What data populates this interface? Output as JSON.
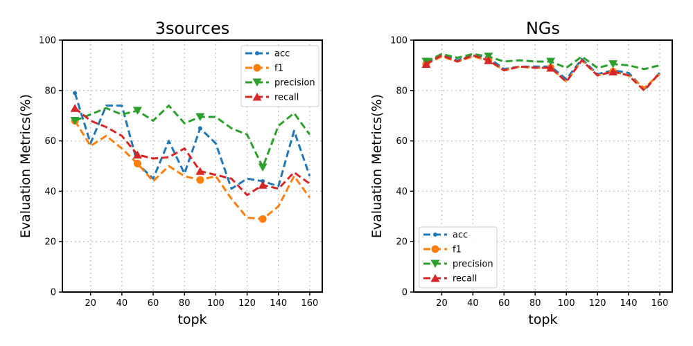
{
  "chart_data": [
    {
      "type": "line",
      "title": "3sources",
      "xlabel": "topk",
      "ylabel": "Evaluation Metrics(%)",
      "xlim": [
        2,
        168
      ],
      "ylim": [
        0,
        100
      ],
      "xticks": [
        20,
        40,
        60,
        80,
        100,
        120,
        140,
        160
      ],
      "yticks": [
        0,
        20,
        40,
        60,
        80,
        100
      ],
      "grid": true,
      "legend_position": "top-right",
      "x": [
        10,
        20,
        30,
        40,
        50,
        60,
        70,
        80,
        90,
        100,
        110,
        120,
        130,
        140,
        150,
        160
      ],
      "series": [
        {
          "name": "acc",
          "color": "#1f77b4",
          "marker": "dot",
          "values": [
            79,
            59,
            74,
            74,
            51,
            45,
            60,
            47,
            65,
            59,
            41,
            45,
            44,
            42,
            64,
            46
          ]
        },
        {
          "name": "f1",
          "color": "#ff7f0e",
          "marker": "circle",
          "values": [
            68,
            58,
            62,
            57,
            51,
            44,
            50,
            46,
            44.5,
            46,
            37,
            29.5,
            29,
            34,
            46,
            37.5
          ]
        },
        {
          "name": "precision",
          "color": "#2ca02c",
          "marker": "triangle-down",
          "values": [
            68,
            70.5,
            73,
            70.5,
            72,
            68,
            74,
            67,
            69.5,
            69.5,
            65,
            62.5,
            49.5,
            66,
            71,
            62.5
          ]
        },
        {
          "name": "recall",
          "color": "#d62728",
          "marker": "triangle-up",
          "values": [
            73,
            68,
            65.5,
            62,
            54.5,
            53,
            53.5,
            57,
            48,
            46.5,
            45,
            38.5,
            42.5,
            41,
            47.5,
            43
          ]
        }
      ]
    },
    {
      "type": "line",
      "title": "NGs",
      "xlabel": "topk",
      "ylabel": "Evaluation Metrics(%)",
      "xlim": [
        2,
        168
      ],
      "ylim": [
        0,
        100
      ],
      "xticks": [
        20,
        40,
        60,
        80,
        100,
        120,
        140,
        160
      ],
      "yticks": [
        0,
        20,
        40,
        60,
        80,
        100
      ],
      "grid": true,
      "legend_position": "bottom-left",
      "x": [
        10,
        20,
        30,
        40,
        50,
        60,
        70,
        80,
        90,
        100,
        110,
        120,
        130,
        140,
        150,
        160
      ],
      "series": [
        {
          "name": "acc",
          "color": "#1f77b4",
          "marker": "dot",
          "values": [
            91,
            94,
            92,
            94,
            93,
            88.5,
            89.5,
            89.5,
            89.5,
            84.5,
            92.5,
            86.5,
            88,
            87,
            80.5,
            87
          ]
        },
        {
          "name": "f1",
          "color": "#ff7f0e",
          "marker": "circle",
          "values": [
            90.5,
            93.5,
            91.5,
            93.5,
            92,
            88,
            89.5,
            89,
            89,
            83.5,
            92,
            86,
            87.5,
            86,
            81,
            86.5
          ]
        },
        {
          "name": "precision",
          "color": "#2ca02c",
          "marker": "triangle-down",
          "values": [
            91.5,
            94.5,
            93,
            94.5,
            93.5,
            91.5,
            92,
            91.5,
            91.5,
            89,
            93.5,
            89,
            90.5,
            90,
            88.5,
            90
          ]
        },
        {
          "name": "recall",
          "color": "#d62728",
          "marker": "triangle-up",
          "values": [
            90.5,
            94,
            91.5,
            94,
            92,
            88,
            89.5,
            89,
            89,
            83.5,
            92,
            86,
            87.5,
            86,
            80,
            87
          ]
        }
      ]
    }
  ]
}
